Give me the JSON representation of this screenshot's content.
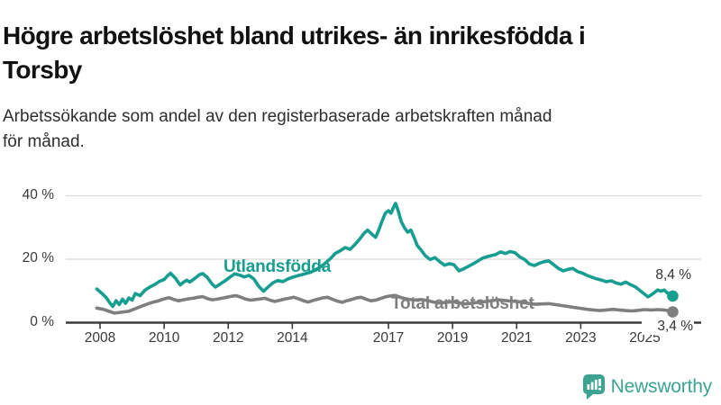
{
  "header": {
    "title_line1": "Högre arbetslöshet bland utrikes- än inrikesfödda i",
    "title_line2": "Torsby",
    "subtitle_line1": "Arbetssökande som andel av den registerbaserade arbetskraften månad",
    "subtitle_line2": "för månad."
  },
  "chart_data": {
    "type": "line",
    "title": "Högre arbetslöshet bland utrikes- än inrikesfödda i Torsby",
    "subtitle": "Arbetssökande som andel av den registerbaserade arbetskraften månad för månad.",
    "x_axis": {
      "tick_years": [
        2008,
        2010,
        2012,
        2014,
        2017,
        2019,
        2021,
        2023,
        2025
      ],
      "tick_labels": [
        "2008",
        "2010",
        "2012",
        "2014",
        "2017",
        "2019",
        "2021",
        "2023",
        "2025"
      ],
      "range": [
        2007.9,
        2026.7
      ]
    },
    "y_axis": {
      "ticks": [
        0,
        20,
        40
      ],
      "tick_labels": [
        "0 %",
        "20 %",
        "40 %"
      ],
      "gridlines": [
        20,
        40
      ],
      "range": [
        0,
        42
      ],
      "unit": "%"
    },
    "series": [
      {
        "name": "Utlandsfödda",
        "color": "#179e90",
        "end_label": "8,4 %",
        "end_value": 8.4,
        "points": [
          [
            2007.9,
            10.6
          ],
          [
            2008.05,
            9.3
          ],
          [
            2008.2,
            7.8
          ],
          [
            2008.3,
            6.3
          ],
          [
            2008.4,
            5.1
          ],
          [
            2008.5,
            6.9
          ],
          [
            2008.6,
            5.7
          ],
          [
            2008.7,
            7.4
          ],
          [
            2008.8,
            6.1
          ],
          [
            2008.9,
            7.8
          ],
          [
            2009.0,
            7.1
          ],
          [
            2009.1,
            9.2
          ],
          [
            2009.25,
            8.5
          ],
          [
            2009.4,
            10.2
          ],
          [
            2009.55,
            11.2
          ],
          [
            2009.7,
            12.0
          ],
          [
            2009.85,
            13.0
          ],
          [
            2010.0,
            13.6
          ],
          [
            2010.1,
            14.7
          ],
          [
            2010.2,
            15.6
          ],
          [
            2010.35,
            14.0
          ],
          [
            2010.5,
            11.9
          ],
          [
            2010.6,
            12.7
          ],
          [
            2010.7,
            13.4
          ],
          [
            2010.8,
            12.8
          ],
          [
            2010.95,
            13.9
          ],
          [
            2011.1,
            15.1
          ],
          [
            2011.2,
            15.5
          ],
          [
            2011.35,
            14.2
          ],
          [
            2011.5,
            12.1
          ],
          [
            2011.6,
            11.2
          ],
          [
            2011.75,
            12.2
          ],
          [
            2011.9,
            13.2
          ],
          [
            2012.05,
            14.3
          ],
          [
            2012.2,
            15.4
          ],
          [
            2012.35,
            15.0
          ],
          [
            2012.5,
            14.4
          ],
          [
            2012.65,
            14.9
          ],
          [
            2012.8,
            13.8
          ],
          [
            2012.95,
            11.5
          ],
          [
            2013.1,
            9.9
          ],
          [
            2013.25,
            11.3
          ],
          [
            2013.4,
            12.6
          ],
          [
            2013.55,
            13.3
          ],
          [
            2013.7,
            12.9
          ],
          [
            2013.85,
            13.7
          ],
          [
            2014.0,
            14.3
          ],
          [
            2014.2,
            14.9
          ],
          [
            2014.4,
            15.4
          ],
          [
            2014.6,
            16.0
          ],
          [
            2014.8,
            17.1
          ],
          [
            2015.0,
            18.5
          ],
          [
            2015.2,
            20.3
          ],
          [
            2015.35,
            21.9
          ],
          [
            2015.5,
            22.7
          ],
          [
            2015.65,
            23.7
          ],
          [
            2015.8,
            23.1
          ],
          [
            2015.95,
            24.6
          ],
          [
            2016.1,
            26.3
          ],
          [
            2016.25,
            28.3
          ],
          [
            2016.35,
            29.2
          ],
          [
            2016.5,
            27.7
          ],
          [
            2016.6,
            26.9
          ],
          [
            2016.7,
            29.3
          ],
          [
            2016.8,
            32.0
          ],
          [
            2016.9,
            34.5
          ],
          [
            2017.0,
            35.3
          ],
          [
            2017.08,
            34.5
          ],
          [
            2017.15,
            36.2
          ],
          [
            2017.22,
            37.6
          ],
          [
            2017.3,
            35.4
          ],
          [
            2017.4,
            31.8
          ],
          [
            2017.5,
            29.9
          ],
          [
            2017.6,
            28.5
          ],
          [
            2017.7,
            29.2
          ],
          [
            2017.8,
            26.8
          ],
          [
            2017.9,
            24.3
          ],
          [
            2018.0,
            23.1
          ],
          [
            2018.15,
            21.1
          ],
          [
            2018.3,
            19.9
          ],
          [
            2018.45,
            20.5
          ],
          [
            2018.6,
            19.2
          ],
          [
            2018.75,
            18.1
          ],
          [
            2018.9,
            18.6
          ],
          [
            2019.05,
            18.2
          ],
          [
            2019.2,
            16.3
          ],
          [
            2019.35,
            17.0
          ],
          [
            2019.5,
            17.8
          ],
          [
            2019.65,
            18.6
          ],
          [
            2019.8,
            19.5
          ],
          [
            2019.95,
            20.4
          ],
          [
            2020.15,
            21.0
          ],
          [
            2020.35,
            21.5
          ],
          [
            2020.5,
            22.3
          ],
          [
            2020.65,
            21.8
          ],
          [
            2020.8,
            22.4
          ],
          [
            2020.95,
            22.0
          ],
          [
            2021.1,
            20.7
          ],
          [
            2021.25,
            19.9
          ],
          [
            2021.4,
            18.5
          ],
          [
            2021.55,
            18.0
          ],
          [
            2021.7,
            18.7
          ],
          [
            2021.85,
            19.2
          ],
          [
            2022.0,
            19.5
          ],
          [
            2022.15,
            18.3
          ],
          [
            2022.3,
            17.1
          ],
          [
            2022.45,
            16.3
          ],
          [
            2022.6,
            16.8
          ],
          [
            2022.75,
            17.1
          ],
          [
            2022.9,
            16.1
          ],
          [
            2023.05,
            15.6
          ],
          [
            2023.2,
            14.9
          ],
          [
            2023.35,
            14.3
          ],
          [
            2023.5,
            13.8
          ],
          [
            2023.65,
            13.4
          ],
          [
            2023.8,
            12.9
          ],
          [
            2023.95,
            13.2
          ],
          [
            2024.1,
            12.5
          ],
          [
            2024.25,
            12.1
          ],
          [
            2024.4,
            12.8
          ],
          [
            2024.55,
            12.0
          ],
          [
            2024.7,
            11.3
          ],
          [
            2024.85,
            10.1
          ],
          [
            2025.0,
            8.9
          ],
          [
            2025.1,
            8.1
          ],
          [
            2025.25,
            9.1
          ],
          [
            2025.4,
            10.3
          ],
          [
            2025.5,
            9.9
          ],
          [
            2025.6,
            10.3
          ],
          [
            2025.7,
            9.4
          ],
          [
            2025.8,
            8.8
          ],
          [
            2025.87,
            8.4
          ]
        ]
      },
      {
        "name": "Total arbetslöshet",
        "color": "#7f7f7f",
        "end_label": "3,4 %",
        "end_value": 3.4,
        "points": [
          [
            2007.9,
            4.6
          ],
          [
            2008.1,
            4.2
          ],
          [
            2008.25,
            3.7
          ],
          [
            2008.45,
            3.0
          ],
          [
            2008.6,
            3.2
          ],
          [
            2008.75,
            3.4
          ],
          [
            2008.9,
            3.6
          ],
          [
            2009.05,
            4.2
          ],
          [
            2009.2,
            4.8
          ],
          [
            2009.4,
            5.6
          ],
          [
            2009.6,
            6.3
          ],
          [
            2009.8,
            6.8
          ],
          [
            2010.0,
            7.5
          ],
          [
            2010.15,
            7.9
          ],
          [
            2010.3,
            7.3
          ],
          [
            2010.45,
            6.9
          ],
          [
            2010.6,
            7.2
          ],
          [
            2010.75,
            7.5
          ],
          [
            2010.9,
            7.7
          ],
          [
            2011.05,
            8.0
          ],
          [
            2011.2,
            8.2
          ],
          [
            2011.35,
            7.6
          ],
          [
            2011.5,
            7.2
          ],
          [
            2011.65,
            7.4
          ],
          [
            2011.8,
            7.7
          ],
          [
            2011.95,
            8.0
          ],
          [
            2012.1,
            8.3
          ],
          [
            2012.25,
            8.5
          ],
          [
            2012.4,
            8.0
          ],
          [
            2012.55,
            7.4
          ],
          [
            2012.7,
            7.1
          ],
          [
            2012.85,
            7.3
          ],
          [
            2013.0,
            7.5
          ],
          [
            2013.15,
            7.7
          ],
          [
            2013.3,
            7.1
          ],
          [
            2013.45,
            6.7
          ],
          [
            2013.6,
            7.0
          ],
          [
            2013.75,
            7.4
          ],
          [
            2013.9,
            7.7
          ],
          [
            2014.05,
            8.0
          ],
          [
            2014.2,
            7.5
          ],
          [
            2014.35,
            6.9
          ],
          [
            2014.5,
            6.5
          ],
          [
            2014.65,
            7.0
          ],
          [
            2014.8,
            7.4
          ],
          [
            2014.95,
            7.8
          ],
          [
            2015.1,
            8.0
          ],
          [
            2015.25,
            7.4
          ],
          [
            2015.4,
            6.8
          ],
          [
            2015.55,
            6.4
          ],
          [
            2015.7,
            6.9
          ],
          [
            2015.85,
            7.3
          ],
          [
            2016.0,
            7.8
          ],
          [
            2016.15,
            8.0
          ],
          [
            2016.3,
            7.4
          ],
          [
            2016.45,
            6.9
          ],
          [
            2016.6,
            7.1
          ],
          [
            2016.75,
            7.6
          ],
          [
            2016.9,
            8.1
          ],
          [
            2017.05,
            8.4
          ],
          [
            2017.2,
            8.6
          ],
          [
            2017.4,
            7.9
          ],
          [
            2017.6,
            7.4
          ],
          [
            2017.8,
            7.1
          ],
          [
            2018.0,
            7.3
          ],
          [
            2018.2,
            7.0
          ],
          [
            2018.4,
            6.5
          ],
          [
            2018.6,
            6.2
          ],
          [
            2018.8,
            6.4
          ],
          [
            2019.0,
            6.6
          ],
          [
            2019.2,
            6.2
          ],
          [
            2019.4,
            5.9
          ],
          [
            2019.6,
            6.1
          ],
          [
            2019.8,
            6.4
          ],
          [
            2020.0,
            6.6
          ],
          [
            2020.2,
            6.9
          ],
          [
            2020.4,
            7.2
          ],
          [
            2020.6,
            7.0
          ],
          [
            2020.8,
            6.8
          ],
          [
            2021.0,
            6.7
          ],
          [
            2021.2,
            6.4
          ],
          [
            2021.4,
            6.0
          ],
          [
            2021.6,
            5.8
          ],
          [
            2021.8,
            5.9
          ],
          [
            2022.0,
            6.0
          ],
          [
            2022.2,
            5.7
          ],
          [
            2022.4,
            5.4
          ],
          [
            2022.6,
            5.1
          ],
          [
            2022.8,
            4.8
          ],
          [
            2023.0,
            4.5
          ],
          [
            2023.2,
            4.2
          ],
          [
            2023.4,
            4.0
          ],
          [
            2023.6,
            3.8
          ],
          [
            2023.8,
            4.0
          ],
          [
            2024.0,
            4.2
          ],
          [
            2024.2,
            4.0
          ],
          [
            2024.4,
            3.8
          ],
          [
            2024.6,
            3.7
          ],
          [
            2024.8,
            3.9
          ],
          [
            2025.0,
            4.1
          ],
          [
            2025.2,
            4.0
          ],
          [
            2025.4,
            4.1
          ],
          [
            2025.6,
            4.0
          ],
          [
            2025.8,
            3.7
          ],
          [
            2025.87,
            3.4
          ]
        ]
      }
    ],
    "legend_position": "inline-labels",
    "grid": true
  },
  "style": {
    "axis_color": "#3a3a3a",
    "grid_color": "#d9d9d9",
    "background": "#ffffff"
  },
  "footer": {
    "brand": "Newsworthy",
    "brand_color": "#3ca392"
  }
}
